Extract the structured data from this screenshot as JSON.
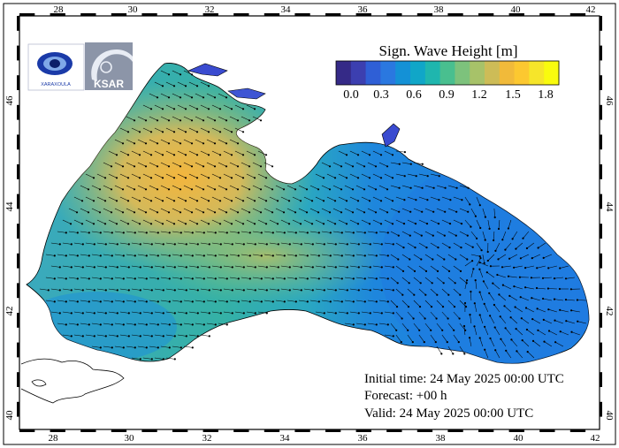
{
  "map": {
    "lon_ticks": [
      "28",
      "30",
      "32",
      "34",
      "36",
      "38",
      "40",
      "42"
    ],
    "lat_ticks": [
      "40",
      "42",
      "44",
      "46"
    ]
  },
  "logos": {
    "left_text": "XARAXOULA",
    "right_text": "KSAR"
  },
  "colorbar": {
    "title": "Sign. Wave Height [m]",
    "labels": [
      "0.0",
      "0.3",
      "0.6",
      "0.9",
      "1.2",
      "1.5",
      "1.8"
    ],
    "colors": [
      "#352a87",
      "#3c3fb0",
      "#2f5fd6",
      "#2a78e0",
      "#1491d6",
      "#10a6c8",
      "#1fb6ae",
      "#49bf8f",
      "#7dc27c",
      "#a7c269",
      "#cdbc57",
      "#f1ba3a",
      "#fcc830",
      "#f6e52a",
      "#f9fb0e"
    ]
  },
  "info": {
    "initial_time": "Initial time: 24 May 2025 00:00 UTC",
    "forecast": "Forecast: +00 h",
    "valid": "Valid: 24 May 2025 00:00 UTC"
  }
}
